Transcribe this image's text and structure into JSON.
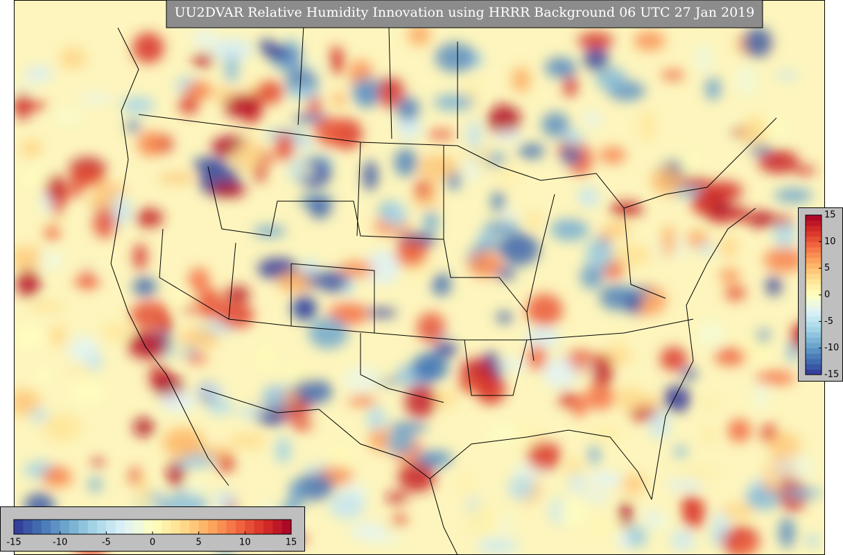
{
  "title": "UU2DVAR Relative Humidity Innovation using HRRR Background 06 UTC 27 Jan 2019",
  "colorbar": {
    "lim": [
      -15,
      15
    ],
    "ticks": [
      -15,
      -10,
      -5,
      0,
      5,
      10,
      15
    ],
    "colors": [
      "#313695",
      "#4575b4",
      "#74add1",
      "#abd9e9",
      "#e0f3f8",
      "#ffffbf",
      "#fee090",
      "#fdae61",
      "#f46d43",
      "#d73027",
      "#a50026"
    ]
  }
}
